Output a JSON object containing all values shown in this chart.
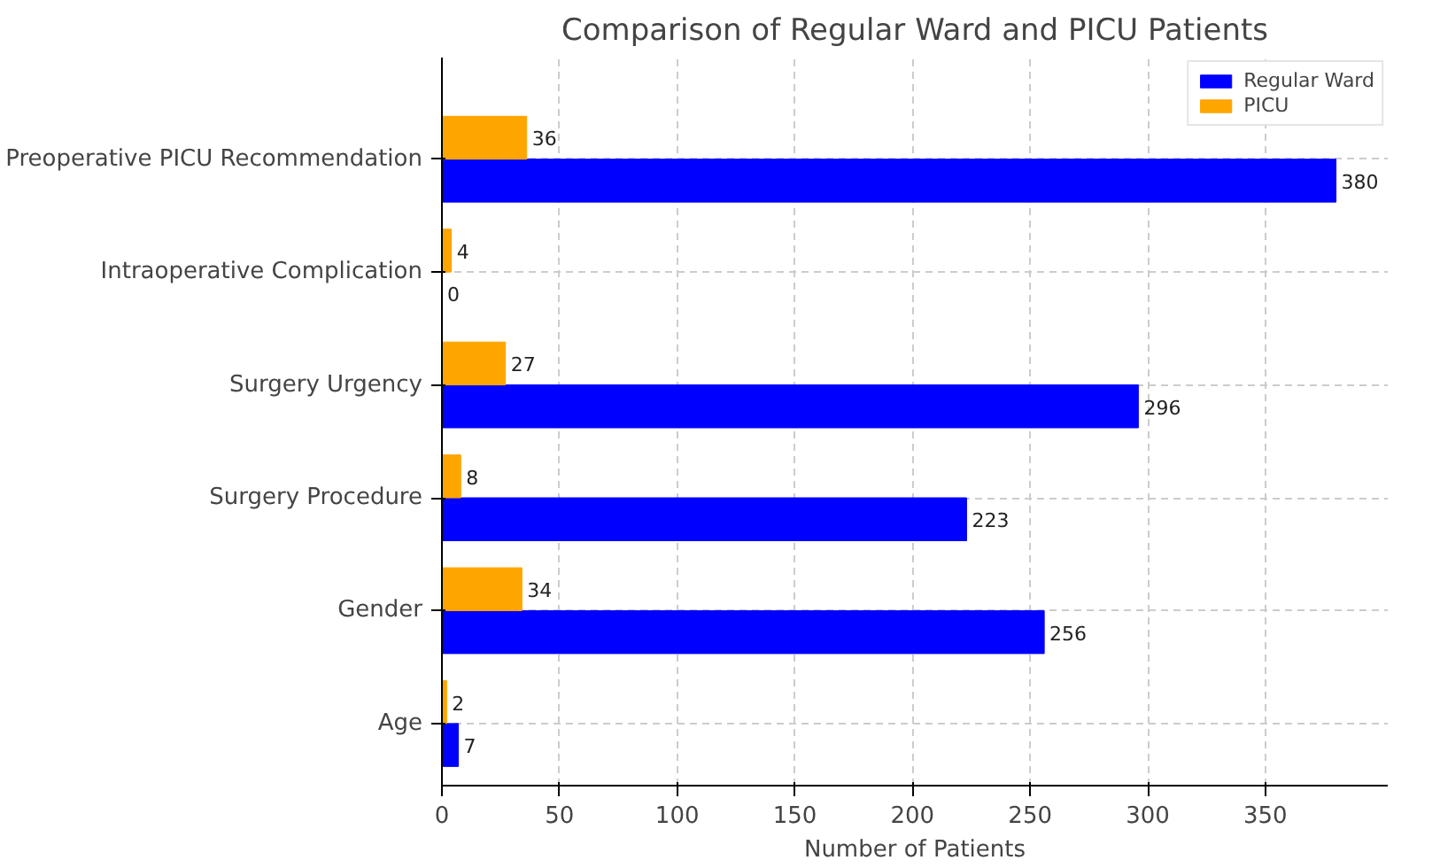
{
  "chart_data": {
    "type": "bar",
    "orientation": "horizontal",
    "title": "Comparison of Regular Ward and PICU Patients",
    "xlabel": "Number of Patients",
    "categories": [
      "Preoperative PICU Recommendation",
      "Intraoperative Complication",
      "Surgery Urgency",
      "Surgery Procedure",
      "Gender",
      "Age"
    ],
    "series": [
      {
        "name": "Regular Ward",
        "color": "#0000ff",
        "values": [
          380,
          0,
          296,
          223,
          256,
          7
        ]
      },
      {
        "name": "PICU",
        "color": "#ffa500",
        "values": [
          36,
          4,
          27,
          8,
          34,
          2
        ]
      }
    ],
    "xlim": [
      0,
      402
    ],
    "xticks": [
      0,
      50,
      100,
      150,
      200,
      250,
      300,
      350
    ],
    "grid": true,
    "legend": "top right",
    "data_labels": true
  }
}
